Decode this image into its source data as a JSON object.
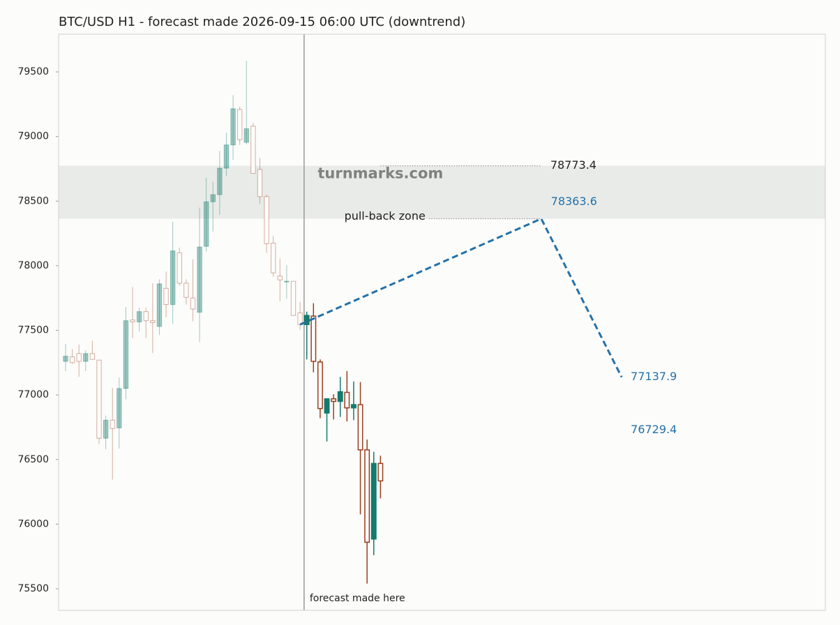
{
  "chart_data": {
    "type": "candlestick",
    "title": "BTC/USD H1 - forecast made 2026-09-15 06:00 UTC (downtrend)",
    "x": [
      0,
      1,
      2,
      3,
      4,
      5,
      6,
      7,
      8,
      9,
      10,
      11,
      12,
      13,
      14,
      15,
      16,
      17,
      18,
      19,
      20,
      21,
      22,
      23,
      24,
      25,
      26,
      27,
      28,
      29,
      30,
      31,
      32,
      33,
      34,
      35,
      36,
      37,
      38,
      39,
      40,
      41,
      42,
      43,
      44,
      45,
      46,
      47
    ],
    "open": [
      77260,
      77295,
      77320,
      77260,
      77320,
      77270,
      76665,
      76805,
      76745,
      77050,
      77580,
      77565,
      77645,
      77575,
      77530,
      77825,
      77700,
      78100,
      77865,
      77750,
      77640,
      78150,
      78495,
      78550,
      78755,
      78935,
      79210,
      78955,
      79080,
      78745,
      78535,
      78175,
      77920,
      77875,
      77880,
      77635,
      77545,
      77610,
      77255,
      76860,
      76970,
      76950,
      77020,
      76900,
      76925,
      76575,
      75885,
      76470
    ],
    "high": [
      77395,
      77355,
      77390,
      77345,
      77420,
      77270,
      76840,
      77055,
      77135,
      77680,
      77835,
      77675,
      77675,
      77865,
      77895,
      77955,
      78340,
      78140,
      77895,
      78050,
      78450,
      78680,
      78650,
      78890,
      79030,
      79320,
      79230,
      79585,
      79105,
      78835,
      78550,
      78230,
      78055,
      78005,
      77880,
      77720,
      77645,
      77710,
      77275,
      76970,
      77005,
      77140,
      77185,
      77105,
      77100,
      76655,
      76560,
      76530
    ],
    "low": [
      77185,
      77240,
      77140,
      77185,
      77275,
      76620,
      76580,
      76345,
      76585,
      76965,
      77440,
      77490,
      77440,
      77325,
      77465,
      77600,
      77550,
      77845,
      77700,
      77570,
      77410,
      78110,
      78265,
      78395,
      78695,
      78820,
      78935,
      78940,
      78715,
      78480,
      78100,
      77915,
      77725,
      77745,
      77615,
      77505,
      77275,
      77175,
      76820,
      76640,
      76810,
      76830,
      76795,
      76805,
      76075,
      75540,
      75760,
      76200
    ],
    "close": [
      77300,
      77250,
      77260,
      77320,
      77275,
      76665,
      76805,
      76740,
      77050,
      77575,
      77565,
      77645,
      77575,
      77560,
      77860,
      77700,
      78115,
      77865,
      77755,
      77665,
      78145,
      78495,
      78550,
      78755,
      78935,
      79215,
      78975,
      79060,
      78715,
      78535,
      78170,
      77945,
      77890,
      77880,
      77615,
      77545,
      77615,
      77260,
      76895,
      76970,
      76950,
      77025,
      76900,
      76925,
      76575,
      75860,
      76470,
      76335
    ],
    "up_color": "#137a6e",
    "down_color": "#9a3d1e",
    "forecast_made_at": 35.6,
    "annotation": "forecast made here",
    "forecast": {
      "x": [
        35,
        71,
        83
      ],
      "values": [
        77545,
        78363.6,
        77137.9
      ],
      "color": "#2371a8"
    },
    "zone": {
      "label": "pull-back zone",
      "high": 78773.4,
      "low": 78363.6,
      "color": "#e9ebe8"
    },
    "target": 76729.4,
    "watermark": "turnmarks.com",
    "xlim": [
      -1.04,
      113.4
    ],
    "ylim": [
      75333,
      79792
    ],
    "yticks": [
      75500,
      76000,
      76500,
      77000,
      77500,
      78000,
      78500,
      79000,
      79500
    ]
  }
}
